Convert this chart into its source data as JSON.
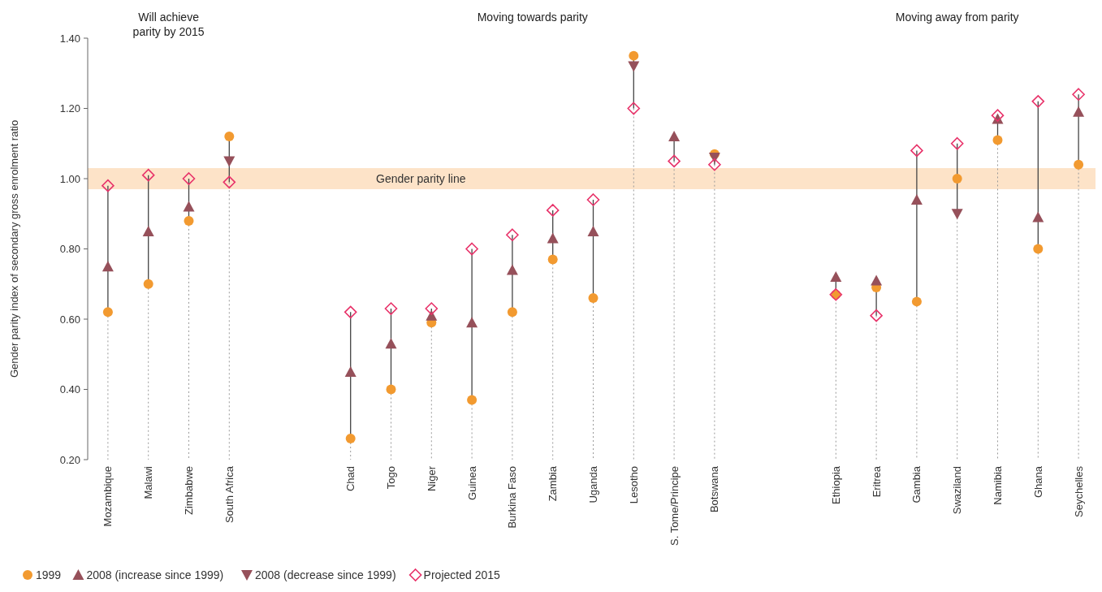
{
  "chart_data": {
    "type": "scatter",
    "categories": [
      "Mozambique",
      "Malawi",
      "Zimbabwe",
      "South Africa",
      null,
      null,
      "Chad",
      "Togo",
      "Niger",
      "Guinea",
      "Burkina Faso",
      "Zambia",
      "Uganda",
      "Lesotho",
      "S. Tome/Principe",
      "Botswana",
      null,
      null,
      "Ethiopia",
      "Eritrea",
      "Gambia",
      "Swaziland",
      "Namibia",
      "Ghana",
      "Seychelles"
    ],
    "series": [
      {
        "name": "1999",
        "color": "#f29a30",
        "marker": "circle",
        "values": [
          0.62,
          0.7,
          0.88,
          1.12,
          null,
          null,
          0.26,
          0.4,
          0.59,
          0.37,
          0.62,
          0.77,
          0.66,
          1.35,
          null,
          1.07,
          null,
          null,
          0.67,
          0.69,
          0.65,
          1.0,
          1.11,
          0.8,
          1.04
        ]
      },
      {
        "name": "2008 (increase since 1999)",
        "color": "#96505a",
        "marker": "triangle",
        "values": [
          0.75,
          0.85,
          0.92,
          null,
          null,
          null,
          0.45,
          0.53,
          0.61,
          0.59,
          0.74,
          0.83,
          0.85,
          null,
          1.12,
          null,
          null,
          null,
          0.72,
          0.71,
          0.94,
          null,
          1.17,
          0.89,
          1.19
        ]
      },
      {
        "name": "2008 (decrease since 1999)",
        "color": "#96505a",
        "marker": "triangle-down",
        "values": [
          null,
          null,
          null,
          1.05,
          null,
          null,
          null,
          null,
          null,
          null,
          null,
          null,
          null,
          1.32,
          null,
          1.06,
          null,
          null,
          null,
          null,
          null,
          0.9,
          null,
          null,
          null
        ]
      },
      {
        "name": "Projected 2015",
        "color": "#e8336a",
        "marker": "diamond",
        "values": [
          0.98,
          1.01,
          1.0,
          0.99,
          null,
          null,
          0.62,
          0.63,
          0.63,
          0.8,
          0.84,
          0.91,
          0.94,
          1.2,
          1.05,
          1.04,
          null,
          null,
          0.67,
          0.61,
          1.08,
          1.1,
          1.18,
          1.22,
          1.24
        ]
      }
    ],
    "ylabel": "Gender parity index of secondary gross enrolment ratio",
    "ylim": [
      0.2,
      1.4
    ],
    "yticks": [
      {
        "value": 0.2,
        "label": "0.20"
      },
      {
        "value": 0.4,
        "label": "0.40"
      },
      {
        "value": 0.6,
        "label": "0.60"
      },
      {
        "value": 0.8,
        "label": "0.80"
      },
      {
        "value": 1.0,
        "label": "1.00"
      },
      {
        "value": 1.2,
        "label": "1.20"
      },
      {
        "value": 1.4,
        "label": "1.40"
      }
    ],
    "bands": [
      {
        "axis": "y",
        "from": 0.97,
        "to": 1.03,
        "label": "Gender parity line",
        "color": "#fde3c8"
      }
    ],
    "annotations": [
      "Will achieve\nparity by 2015",
      "Moving towards parity",
      "Moving away from parity"
    ],
    "legend": "bottom left",
    "grid": "x"
  }
}
